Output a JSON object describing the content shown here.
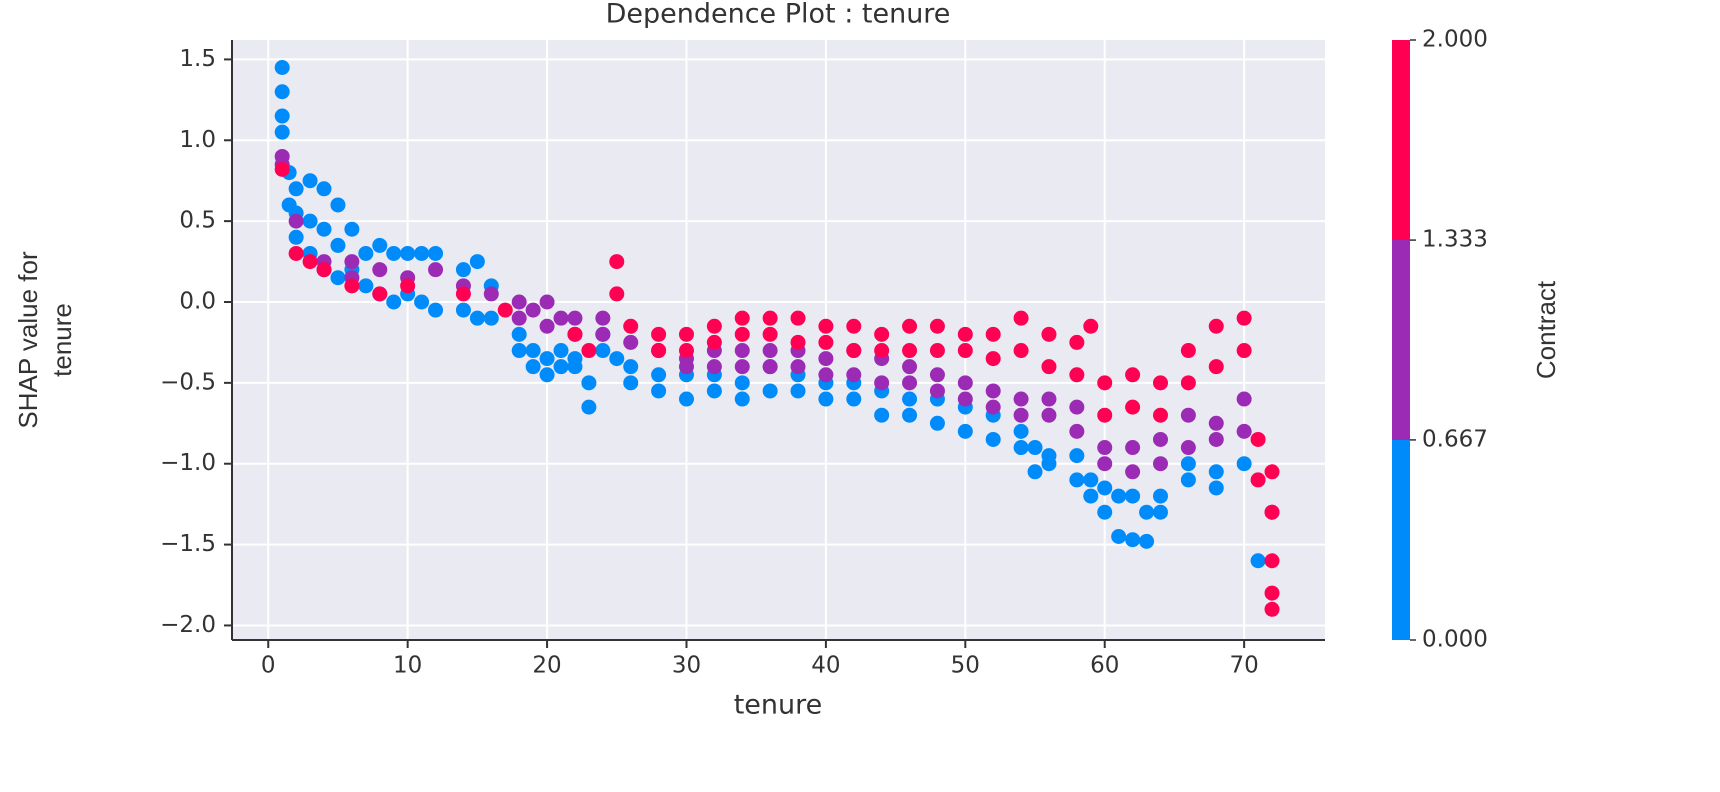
{
  "chart_data": {
    "type": "scatter",
    "title": "Dependence Plot : tenure",
    "xlabel": "tenure",
    "ylabel_lines": [
      "SHAP value for",
      "tenure"
    ],
    "xlim": [
      -2.6,
      75.8
    ],
    "ylim": [
      -2.09,
      1.62
    ],
    "xticks": [
      0,
      10,
      20,
      30,
      40,
      50,
      60,
      70
    ],
    "yticks": [
      {
        "value": 1.5,
        "label": "1.5"
      },
      {
        "value": 1.0,
        "label": "1.0"
      },
      {
        "value": 0.5,
        "label": "0.5"
      },
      {
        "value": 0.0,
        "label": "0.0"
      },
      {
        "value": -0.5,
        "label": "−0.5"
      },
      {
        "value": -1.0,
        "label": "−1.0"
      },
      {
        "value": -1.5,
        "label": "−1.5"
      },
      {
        "value": -2.0,
        "label": "−2.0"
      }
    ],
    "grid": true,
    "colorbar": {
      "label": "Contract",
      "lim": [
        0,
        2
      ],
      "ticks": [
        {
          "value": 0,
          "label": "0.000"
        },
        {
          "value": 0.667,
          "label": "0.667"
        },
        {
          "value": 1.333,
          "label": "1.333"
        },
        {
          "value": 2,
          "label": "2.000"
        }
      ],
      "colors": [
        "#008bfb",
        "#9b2bb4",
        "#ff0052"
      ]
    },
    "series": [
      {
        "c": 0,
        "x": [
          1,
          1,
          1,
          1,
          1.5,
          1.5,
          2,
          2,
          2,
          3,
          3,
          3,
          4,
          4,
          4,
          5,
          5,
          5,
          6,
          6,
          7,
          7,
          8,
          8,
          9,
          9,
          10,
          10,
          11,
          11,
          12,
          12,
          14,
          14,
          15,
          15,
          16,
          16,
          18,
          18,
          19,
          19,
          20,
          20,
          21,
          21,
          22,
          22,
          23,
          23,
          24,
          24,
          25,
          26,
          26,
          28,
          28,
          30,
          30,
          32,
          32,
          34,
          34,
          36,
          36,
          38,
          38,
          40,
          40,
          42,
          42,
          44,
          44,
          46,
          46,
          48,
          48,
          50,
          50,
          52,
          52,
          54,
          54,
          55,
          55,
          56,
          56,
          58,
          58,
          59,
          59,
          60,
          60,
          61,
          61,
          62,
          62,
          63,
          63,
          64,
          64,
          66,
          66,
          68,
          68,
          70,
          71
        ],
        "values": [
          1.45,
          1.3,
          1.15,
          1.05,
          0.8,
          0.6,
          0.7,
          0.4,
          0.55,
          0.75,
          0.5,
          0.3,
          0.7,
          0.45,
          0.2,
          0.6,
          0.35,
          0.15,
          0.45,
          0.2,
          0.3,
          0.1,
          0.35,
          0.05,
          0.3,
          0.0,
          0.3,
          0.05,
          0.3,
          0.0,
          0.3,
          -0.05,
          0.2,
          -0.05,
          0.25,
          -0.1,
          0.1,
          -0.1,
          -0.2,
          -0.3,
          -0.3,
          -0.4,
          -0.35,
          -0.45,
          -0.3,
          -0.4,
          -0.35,
          -0.4,
          -0.5,
          -0.65,
          -0.2,
          -0.3,
          -0.35,
          -0.4,
          -0.5,
          -0.45,
          -0.55,
          -0.45,
          -0.6,
          -0.45,
          -0.55,
          -0.5,
          -0.6,
          -0.4,
          -0.55,
          -0.45,
          -0.55,
          -0.5,
          -0.6,
          -0.5,
          -0.6,
          -0.55,
          -0.7,
          -0.6,
          -0.7,
          -0.6,
          -0.75,
          -0.65,
          -0.8,
          -0.7,
          -0.85,
          -0.8,
          -0.9,
          -0.9,
          -1.05,
          -0.95,
          -1.0,
          -0.95,
          -1.1,
          -1.1,
          -1.2,
          -1.15,
          -1.3,
          -1.2,
          -1.45,
          -1.2,
          -1.47,
          -1.3,
          -1.48,
          -1.2,
          -1.3,
          -1.0,
          -1.1,
          -1.05,
          -1.15,
          -1.0,
          -1.6
        ]
      },
      {
        "c": 1,
        "x": [
          1,
          1,
          2,
          4,
          6,
          6,
          8,
          10,
          12,
          14,
          16,
          18,
          18,
          19,
          20,
          20,
          21,
          22,
          22,
          24,
          24,
          26,
          28,
          30,
          30,
          32,
          32,
          34,
          34,
          36,
          36,
          38,
          38,
          40,
          40,
          42,
          42,
          44,
          44,
          46,
          46,
          48,
          48,
          50,
          50,
          52,
          52,
          54,
          54,
          56,
          56,
          58,
          58,
          60,
          60,
          62,
          62,
          64,
          64,
          66,
          66,
          68,
          68,
          70,
          70,
          72
        ],
        "values": [
          0.9,
          0.85,
          0.5,
          0.25,
          0.25,
          0.15,
          0.2,
          0.15,
          0.2,
          0.1,
          0.05,
          0.0,
          -0.1,
          -0.05,
          0.0,
          -0.15,
          -0.1,
          -0.1,
          -0.2,
          -0.1,
          -0.2,
          -0.25,
          -0.3,
          -0.35,
          -0.4,
          -0.3,
          -0.4,
          -0.3,
          -0.4,
          -0.3,
          -0.4,
          -0.3,
          -0.4,
          -0.35,
          -0.45,
          -0.3,
          -0.45,
          -0.35,
          -0.5,
          -0.4,
          -0.5,
          -0.45,
          -0.55,
          -0.5,
          -0.6,
          -0.55,
          -0.65,
          -0.6,
          -0.7,
          -0.6,
          -0.7,
          -0.65,
          -0.8,
          -0.9,
          -1.0,
          -0.9,
          -1.05,
          -0.85,
          -1.0,
          -0.7,
          -0.9,
          -0.75,
          -0.85,
          -0.6,
          -0.8,
          -1.3
        ]
      },
      {
        "c": 2,
        "x": [
          1,
          2,
          3,
          4,
          6,
          8,
          10,
          14,
          17,
          22,
          23,
          25,
          25,
          26,
          28,
          28,
          30,
          30,
          32,
          32,
          34,
          34,
          36,
          36,
          38,
          38,
          40,
          40,
          42,
          42,
          44,
          44,
          46,
          46,
          48,
          48,
          50,
          50,
          52,
          52,
          54,
          54,
          56,
          56,
          58,
          58,
          59,
          60,
          60,
          62,
          62,
          64,
          64,
          66,
          66,
          68,
          68,
          70,
          70,
          71,
          71,
          72,
          72,
          72,
          72,
          72
        ],
        "values": [
          0.82,
          0.3,
          0.25,
          0.2,
          0.1,
          0.05,
          0.1,
          0.05,
          -0.05,
          -0.2,
          -0.3,
          0.25,
          0.05,
          -0.15,
          -0.2,
          -0.3,
          -0.2,
          -0.3,
          -0.15,
          -0.25,
          -0.1,
          -0.2,
          -0.1,
          -0.2,
          -0.1,
          -0.25,
          -0.15,
          -0.25,
          -0.15,
          -0.3,
          -0.2,
          -0.3,
          -0.15,
          -0.3,
          -0.15,
          -0.3,
          -0.2,
          -0.3,
          -0.2,
          -0.35,
          -0.1,
          -0.3,
          -0.2,
          -0.4,
          -0.25,
          -0.45,
          -0.15,
          -0.5,
          -0.7,
          -0.45,
          -0.65,
          -0.5,
          -0.7,
          -0.3,
          -0.5,
          -0.15,
          -0.4,
          -0.1,
          -0.3,
          -0.85,
          -1.1,
          -1.3,
          -1.6,
          -1.8,
          -1.9,
          -1.05
        ]
      }
    ]
  }
}
